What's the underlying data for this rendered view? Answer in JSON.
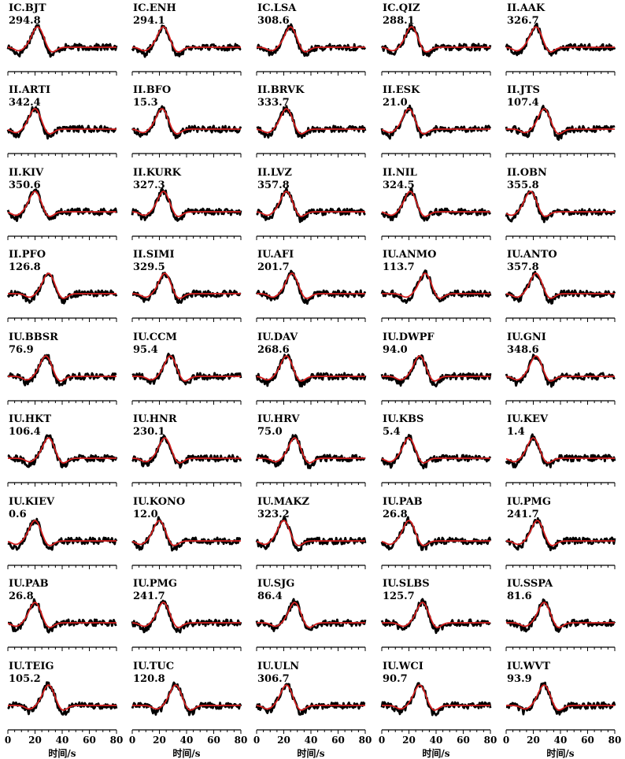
{
  "chart_data": {
    "type": "line",
    "layout": "small-multiples",
    "grid": false,
    "x_range": [
      0,
      80
    ],
    "x_ticks": [
      0,
      20,
      40,
      60,
      80
    ],
    "x_minor_step": 5,
    "xlabel": "时间/s",
    "series_names": [
      "observed",
      "synthetic"
    ],
    "series_colors": {
      "observed": "#000000",
      "synthetic": "#d42020"
    },
    "panels": [
      {
        "station": "IC.BJT",
        "azimuth": "294.8",
        "pulse_time": 22
      },
      {
        "station": "IC.ENH",
        "azimuth": "294.1",
        "pulse_time": 23
      },
      {
        "station": "IC.LSA",
        "azimuth": "308.6",
        "pulse_time": 25
      },
      {
        "station": "IC.QIZ",
        "azimuth": "288.1",
        "pulse_time": 22
      },
      {
        "station": "II.AAK",
        "azimuth": "326.7",
        "pulse_time": 22
      },
      {
        "station": "II.ARTI",
        "azimuth": "342.4",
        "pulse_time": 20
      },
      {
        "station": "II.BFO",
        "azimuth": "15.3",
        "pulse_time": 22
      },
      {
        "station": "II.BRVK",
        "azimuth": "333.7",
        "pulse_time": 22
      },
      {
        "station": "II.ESK",
        "azimuth": "21.0",
        "pulse_time": 20
      },
      {
        "station": "II.JTS",
        "azimuth": "107.4",
        "pulse_time": 28
      },
      {
        "station": "II.KIV",
        "azimuth": "350.6",
        "pulse_time": 20
      },
      {
        "station": "II.KURK",
        "azimuth": "327.3",
        "pulse_time": 23
      },
      {
        "station": "II.LVZ",
        "azimuth": "357.8",
        "pulse_time": 22
      },
      {
        "station": "II.NIL",
        "azimuth": "324.5",
        "pulse_time": 21
      },
      {
        "station": "II.OBN",
        "azimuth": "355.8",
        "pulse_time": 18
      },
      {
        "station": "II.PFO",
        "azimuth": "126.8",
        "pulse_time": 30
      },
      {
        "station": "II.SIMI",
        "azimuth": "329.5",
        "pulse_time": 24
      },
      {
        "station": "IU.AFI",
        "azimuth": "201.7",
        "pulse_time": 26
      },
      {
        "station": "IU.ANMO",
        "azimuth": "113.7",
        "pulse_time": 32
      },
      {
        "station": "IU.ANTO",
        "azimuth": "357.8",
        "pulse_time": 22
      },
      {
        "station": "IU.BBSR",
        "azimuth": "76.9",
        "pulse_time": 28
      },
      {
        "station": "IU.CCM",
        "azimuth": "95.4",
        "pulse_time": 28
      },
      {
        "station": "IU.DAV",
        "azimuth": "268.6",
        "pulse_time": 22
      },
      {
        "station": "IU.DWPF",
        "azimuth": "94.0",
        "pulse_time": 28
      },
      {
        "station": "IU.GNI",
        "azimuth": "348.6",
        "pulse_time": 22
      },
      {
        "station": "IU.HKT",
        "azimuth": "106.4",
        "pulse_time": 30
      },
      {
        "station": "IU.HNR",
        "azimuth": "230.1",
        "pulse_time": 24
      },
      {
        "station": "IU.HRV",
        "azimuth": "75.0",
        "pulse_time": 28
      },
      {
        "station": "IU.KBS",
        "azimuth": "5.4",
        "pulse_time": 20
      },
      {
        "station": "IU.KEV",
        "azimuth": "1.4",
        "pulse_time": 20
      },
      {
        "station": "IU.KIEV",
        "azimuth": "0.6",
        "pulse_time": 20
      },
      {
        "station": "IU.KONO",
        "azimuth": "12.0",
        "pulse_time": 20
      },
      {
        "station": "IU.MAKZ",
        "azimuth": "323.2",
        "pulse_time": 20
      },
      {
        "station": "IU.PAB",
        "azimuth": "26.8",
        "pulse_time": 20
      },
      {
        "station": "IU.PMG",
        "azimuth": "241.7",
        "pulse_time": 23
      },
      {
        "station": "IU.PAB",
        "azimuth": "26.8",
        "pulse_time": 20
      },
      {
        "station": "IU.PMG",
        "azimuth": "241.7",
        "pulse_time": 23
      },
      {
        "station": "IU.SJG",
        "azimuth": "86.4",
        "pulse_time": 28
      },
      {
        "station": "IU.SLBS",
        "azimuth": "125.7",
        "pulse_time": 30
      },
      {
        "station": "IU.SSPA",
        "azimuth": "81.6",
        "pulse_time": 28
      },
      {
        "station": "IU.TEIG",
        "azimuth": "105.2",
        "pulse_time": 30
      },
      {
        "station": "IU.TUC",
        "azimuth": "120.8",
        "pulse_time": 32
      },
      {
        "station": "IU.ULN",
        "azimuth": "306.7",
        "pulse_time": 22
      },
      {
        "station": "IU.WCI",
        "azimuth": "90.7",
        "pulse_time": 28
      },
      {
        "station": "IU.WVT",
        "azimuth": "93.9",
        "pulse_time": 28
      }
    ]
  }
}
